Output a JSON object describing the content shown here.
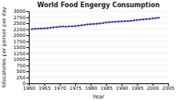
{
  "chart_data": {
    "type": "line",
    "title": "World Food Engergy Consumption",
    "xlabel": "Year",
    "ylabel": "Kilocalories per person per day",
    "x": [
      1961,
      1962,
      1963,
      1964,
      1965,
      1966,
      1967,
      1968,
      1969,
      1970,
      1971,
      1972,
      1973,
      1974,
      1975,
      1976,
      1977,
      1978,
      1979,
      1980,
      1981,
      1982,
      1983,
      1984,
      1985,
      1986,
      1987,
      1988,
      1989,
      1990,
      1991,
      1992,
      1993,
      1994,
      1995,
      1996,
      1997,
      1998,
      1999,
      2000,
      2001,
      2002
    ],
    "values": [
      2255,
      2270,
      2275,
      2280,
      2285,
      2295,
      2310,
      2330,
      2340,
      2355,
      2365,
      2355,
      2370,
      2370,
      2380,
      2400,
      2415,
      2430,
      2450,
      2460,
      2470,
      2480,
      2490,
      2510,
      2530,
      2545,
      2555,
      2565,
      2570,
      2580,
      2585,
      2590,
      2600,
      2620,
      2630,
      2650,
      2660,
      2670,
      2680,
      2700,
      2710,
      2730
    ],
    "color": "#3333aa",
    "marker": "square",
    "xlim": [
      1960,
      2005
    ],
    "xticks": [
      1960,
      1965,
      1970,
      1975,
      1980,
      1985,
      1990,
      1995,
      2000,
      2005
    ],
    "ylim": [
      0,
      3000
    ],
    "yticks": [
      0,
      250,
      500,
      750,
      1000,
      1250,
      1500,
      1750,
      2000,
      2250,
      2500,
      2750,
      3000
    ],
    "grid": "y"
  }
}
